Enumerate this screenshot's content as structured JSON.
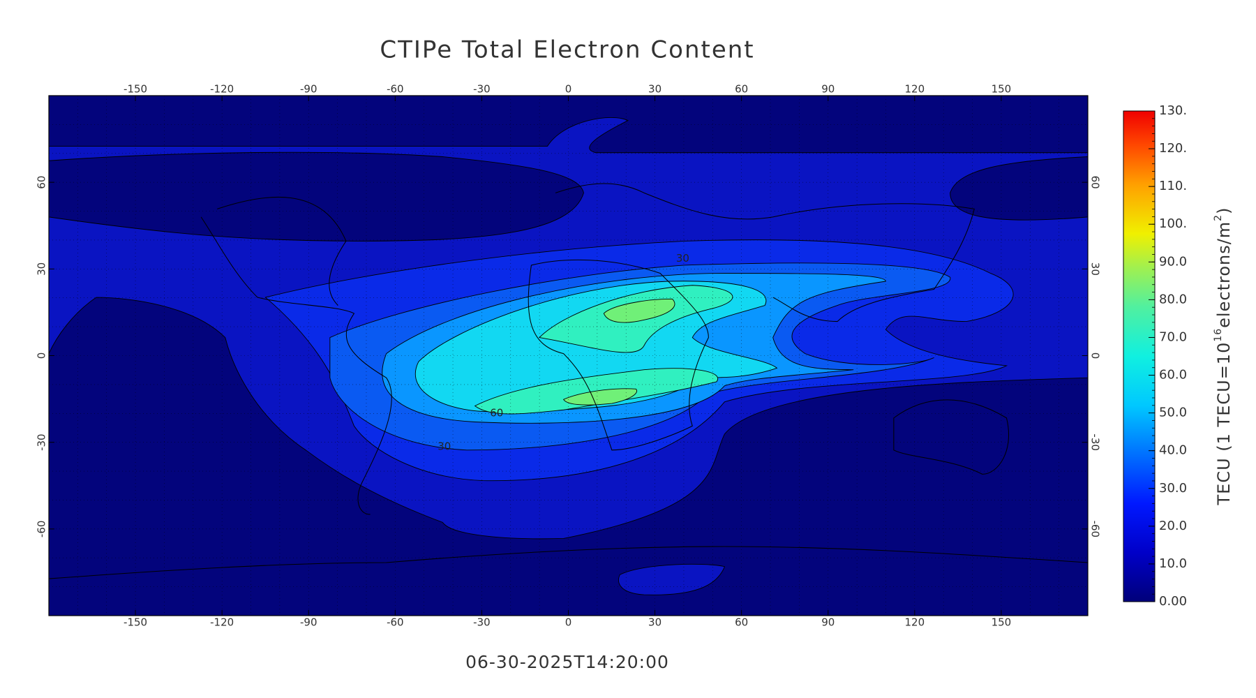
{
  "title": "CTIPe Total Electron Content",
  "timestamp": "06-30-2025T14:20:00",
  "map": {
    "xlim": [
      -180,
      180
    ],
    "ylim": [
      -90,
      90
    ],
    "xticks": [
      -150,
      -120,
      -90,
      -60,
      -30,
      0,
      30,
      60,
      90,
      120,
      150
    ],
    "yticks": [
      -60,
      -30,
      0,
      30,
      60
    ],
    "contour_labels": [
      30,
      60,
      30
    ]
  },
  "colorbar": {
    "lim": [
      0,
      130
    ],
    "ticks": [
      {
        "value": 0,
        "label": "0.00"
      },
      {
        "value": 10,
        "label": "10.0"
      },
      {
        "value": 20,
        "label": "20.0"
      },
      {
        "value": 30,
        "label": "30.0"
      },
      {
        "value": 40,
        "label": "40.0"
      },
      {
        "value": 50,
        "label": "50.0"
      },
      {
        "value": 60,
        "label": "60.0"
      },
      {
        "value": 70,
        "label": "70.0"
      },
      {
        "value": 80,
        "label": "80.0"
      },
      {
        "value": 90,
        "label": "90.0"
      },
      {
        "value": 100,
        "label": "100."
      },
      {
        "value": 110,
        "label": "110."
      },
      {
        "value": 120,
        "label": "120."
      },
      {
        "value": 130,
        "label": "130."
      }
    ],
    "label_parts": [
      "TECU (1 TECU=10",
      "16",
      "electrons/m",
      "2",
      ")"
    ]
  }
}
